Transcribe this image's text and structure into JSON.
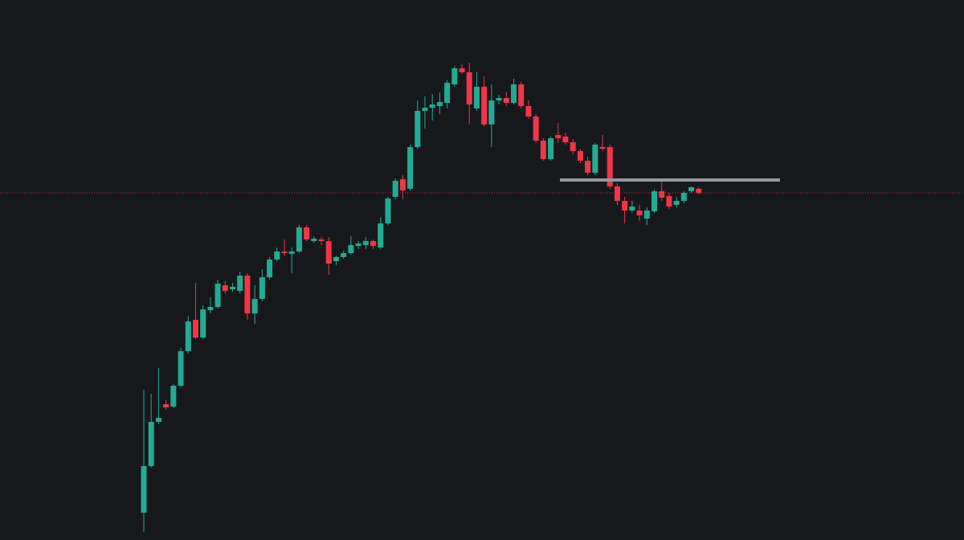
{
  "chart_data": {
    "type": "candlestick",
    "ylim": [
      0,
      672
    ],
    "up_color": "#22ab94",
    "down_color": "#f23645",
    "level": 448,
    "level_color": "#9598a1",
    "price_line_color": "#f23645",
    "open": [
      34,
      92,
      147,
      169,
      166,
      192,
      235,
      274,
      252,
      286,
      290,
      317,
      312,
      310,
      329,
      282,
      300,
      327,
      349,
      359,
      356,
      359,
      389,
      372,
      374,
      372,
      347,
      352,
      357,
      366,
      367,
      372,
      364,
      394,
      427,
      449,
      437,
      489,
      534,
      538,
      540,
      544,
      567,
      587,
      582,
      537,
      564,
      517,
      547,
      550,
      544,
      567,
      540,
      527,
      497,
      474,
      504,
      502,
      495,
      484,
      472,
      457,
      489,
      489,
      440,
      422,
      410,
      410,
      400,
      409,
      434,
      428,
      417,
      422,
      434,
      437
    ],
    "close": [
      92,
      147,
      152,
      165,
      192,
      235,
      272,
      252,
      287,
      290,
      319,
      310,
      315,
      329,
      282,
      300,
      327,
      349,
      359,
      357,
      359,
      389,
      374,
      375,
      372,
      344,
      352,
      357,
      367,
      369,
      372,
      366,
      394,
      425,
      447,
      435,
      489,
      534,
      538,
      542,
      545,
      569,
      587,
      582,
      542,
      564,
      517,
      547,
      550,
      544,
      567,
      540,
      527,
      497,
      474,
      500,
      500,
      495,
      484,
      472,
      457,
      492,
      487,
      440,
      422,
      410,
      415,
      404,
      410,
      434,
      426,
      415,
      422,
      432,
      439,
      432
    ],
    "high": [
      187,
      182,
      214,
      174,
      194,
      239,
      279,
      320,
      292,
      302,
      324,
      322,
      320,
      334,
      332,
      317,
      337,
      352,
      364,
      374,
      364,
      392,
      392,
      378,
      377,
      377,
      354,
      360,
      378,
      372,
      377,
      374,
      402,
      427,
      450,
      454,
      492,
      547,
      552,
      555,
      557,
      572,
      590,
      592,
      594,
      582,
      577,
      567,
      554,
      557,
      574,
      570,
      547,
      530,
      500,
      502,
      519,
      507,
      499,
      487,
      477,
      494,
      504,
      492,
      444,
      427,
      422,
      417,
      414,
      436,
      447,
      432,
      427,
      434,
      440,
      439
    ],
    "low": [
      10,
      90,
      144,
      162,
      164,
      190,
      232,
      250,
      250,
      282,
      288,
      307,
      309,
      307,
      274,
      269,
      297,
      324,
      347,
      354,
      332,
      357,
      372,
      370,
      367,
      330,
      342,
      350,
      355,
      362,
      362,
      362,
      362,
      392,
      424,
      424,
      435,
      487,
      512,
      522,
      530,
      537,
      564,
      580,
      517,
      534,
      515,
      489,
      542,
      540,
      542,
      537,
      524,
      494,
      472,
      472,
      494,
      492,
      480,
      469,
      454,
      454,
      484,
      437,
      417,
      394,
      407,
      397,
      392,
      407,
      422,
      412,
      414,
      419,
      432,
      430
    ]
  }
}
